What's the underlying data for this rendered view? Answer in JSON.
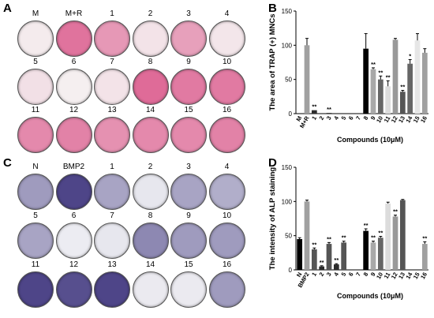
{
  "panels": {
    "A": {
      "letter": "A",
      "labels": [
        "M",
        "M+R",
        "1",
        "2",
        "3",
        "4",
        "5",
        "6",
        "7",
        "8",
        "9",
        "10",
        "11",
        "12",
        "13",
        "14",
        "15",
        "16"
      ],
      "stain": [
        0.05,
        0.85,
        0.6,
        0.1,
        0.55,
        0.08,
        0.12,
        0.02,
        0.1,
        0.9,
        0.8,
        0.8,
        0.7,
        0.75,
        0.65,
        0.7,
        0.7,
        0.75
      ]
    },
    "C": {
      "letter": "C",
      "labels": [
        "N",
        "BMP2",
        "1",
        "2",
        "3",
        "4",
        "5",
        "6",
        "7",
        "8",
        "9",
        "10",
        "11",
        "12",
        "13",
        "14",
        "15",
        "16"
      ],
      "stain": [
        0.45,
        0.9,
        0.4,
        0.05,
        0.4,
        0.35,
        0.4,
        0.02,
        0.05,
        0.55,
        0.45,
        0.45,
        0.9,
        0.85,
        0.9,
        0.03,
        0.03,
        0.45
      ]
    },
    "B": {
      "letter": "B"
    },
    "D": {
      "letter": "D"
    }
  },
  "chart_data": [
    {
      "type": "bar",
      "ylabel": "The area of TRAP (+) MNCs",
      "xlabel": "Compounds (10μM)",
      "ylim": [
        0,
        150
      ],
      "yticks": [
        "0",
        "50",
        "100",
        "150"
      ],
      "categories": [
        "M",
        "M+R",
        "1",
        "2",
        "3",
        "4",
        "5",
        "6",
        "7",
        "8",
        "9",
        "10",
        "11",
        "12",
        "13",
        "14",
        "15",
        "16"
      ],
      "values": [
        0,
        100,
        5,
        0,
        1,
        0,
        0,
        0,
        0,
        95,
        65,
        50,
        40,
        108,
        32,
        73,
        107,
        89
      ],
      "errors": [
        0,
        10,
        0,
        0,
        0,
        0,
        0,
        0,
        0,
        22,
        2,
        5,
        8,
        2,
        2,
        6,
        10,
        6
      ],
      "significance": [
        "",
        "",
        "**",
        "",
        "**",
        "",
        "",
        "",
        "",
        "",
        "**",
        "**",
        "**",
        "",
        "**",
        "*",
        "",
        ""
      ],
      "colors": [
        "#555555",
        "#a0a0a0",
        "#2b2b2b",
        "#2b2b2b",
        "#2b2b2b",
        "#2b2b2b",
        "#2b2b2b",
        "#2b2b2b",
        "#2b2b2b",
        "#000000",
        "#a8a8a8",
        "#666666",
        "#dcdcdc",
        "#999999",
        "#555555",
        "#666666",
        "#e6e6e6",
        "#a0a0a0"
      ]
    },
    {
      "type": "bar",
      "ylabel": "The intensity of ALP staining",
      "xlabel": "Compounds (10μM)",
      "ylim": [
        0,
        150
      ],
      "yticks": [
        "0",
        "50",
        "100",
        "150"
      ],
      "categories": [
        "N",
        "BMP2",
        "1",
        "2",
        "3",
        "4",
        "5",
        "6",
        "7",
        "8",
        "9",
        "10",
        "11",
        "12",
        "13",
        "14",
        "15",
        "16"
      ],
      "values": [
        45,
        100,
        30,
        5,
        38,
        8,
        40,
        0,
        0,
        57,
        40,
        47,
        97,
        78,
        102,
        0,
        0,
        38
      ],
      "errors": [
        2,
        2,
        2,
        1,
        2,
        1,
        2,
        0,
        0,
        3,
        2,
        2,
        2,
        2,
        1,
        0,
        0,
        3
      ],
      "significance": [
        "",
        "",
        "**",
        "**",
        "**",
        "**",
        "**",
        "",
        "",
        "**",
        "**",
        "**",
        "",
        "**",
        "",
        "",
        "",
        "**"
      ],
      "colors": [
        "#000000",
        "#a0a0a0",
        "#555555",
        "#2b2b2b",
        "#555555",
        "#2b2b2b",
        "#555555",
        "#2b2b2b",
        "#2b2b2b",
        "#000000",
        "#a8a8a8",
        "#666666",
        "#dcdcdc",
        "#999999",
        "#555555",
        "#2b2b2b",
        "#2b2b2b",
        "#a0a0a0"
      ]
    }
  ]
}
